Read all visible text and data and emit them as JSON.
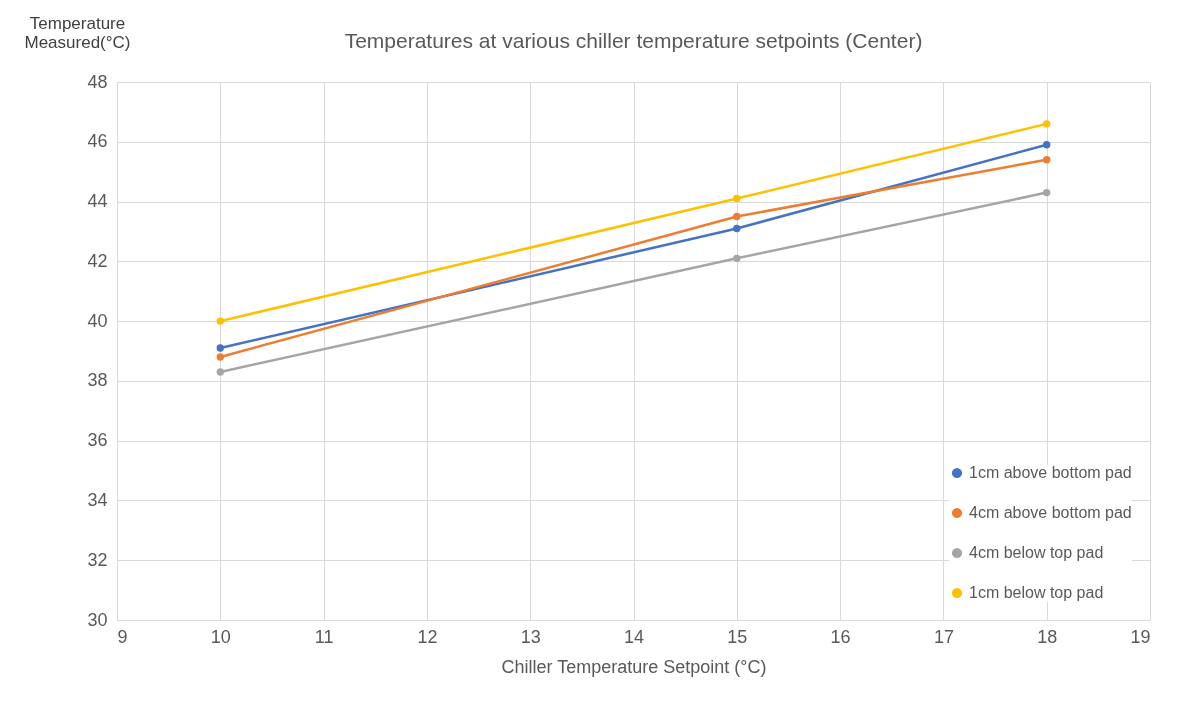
{
  "chart_data": {
    "type": "line",
    "title": "Temperatures at various chiller temperature setpoints (Center)",
    "xlabel": "Chiller Temperature Setpoint (°C)",
    "ylabel": "Temperature\nMeasured(°C)",
    "x": [
      10,
      15,
      18
    ],
    "series": [
      {
        "name": "1cm above bottom pad",
        "color": "#4472c4",
        "values": [
          39.1,
          43.1,
          45.9
        ]
      },
      {
        "name": "4cm above bottom pad",
        "color": "#ed7d31",
        "values": [
          38.8,
          43.5,
          45.4
        ]
      },
      {
        "name": "4cm below top pad",
        "color": "#a5a5a5",
        "values": [
          38.3,
          42.1,
          44.3
        ]
      },
      {
        "name": "1cm below top pad",
        "color": "#ffc000",
        "values": [
          40.0,
          44.1,
          46.6
        ]
      }
    ],
    "xlim": [
      9,
      19
    ],
    "xticks": [
      9,
      10,
      11,
      12,
      13,
      14,
      15,
      16,
      17,
      18,
      19
    ],
    "ylim": [
      30,
      48
    ],
    "yticks": [
      30,
      32,
      34,
      36,
      38,
      40,
      42,
      44,
      46,
      48
    ],
    "grid": true,
    "legend": "bottom right",
    "marker": "circle",
    "line_style": "solid"
  }
}
